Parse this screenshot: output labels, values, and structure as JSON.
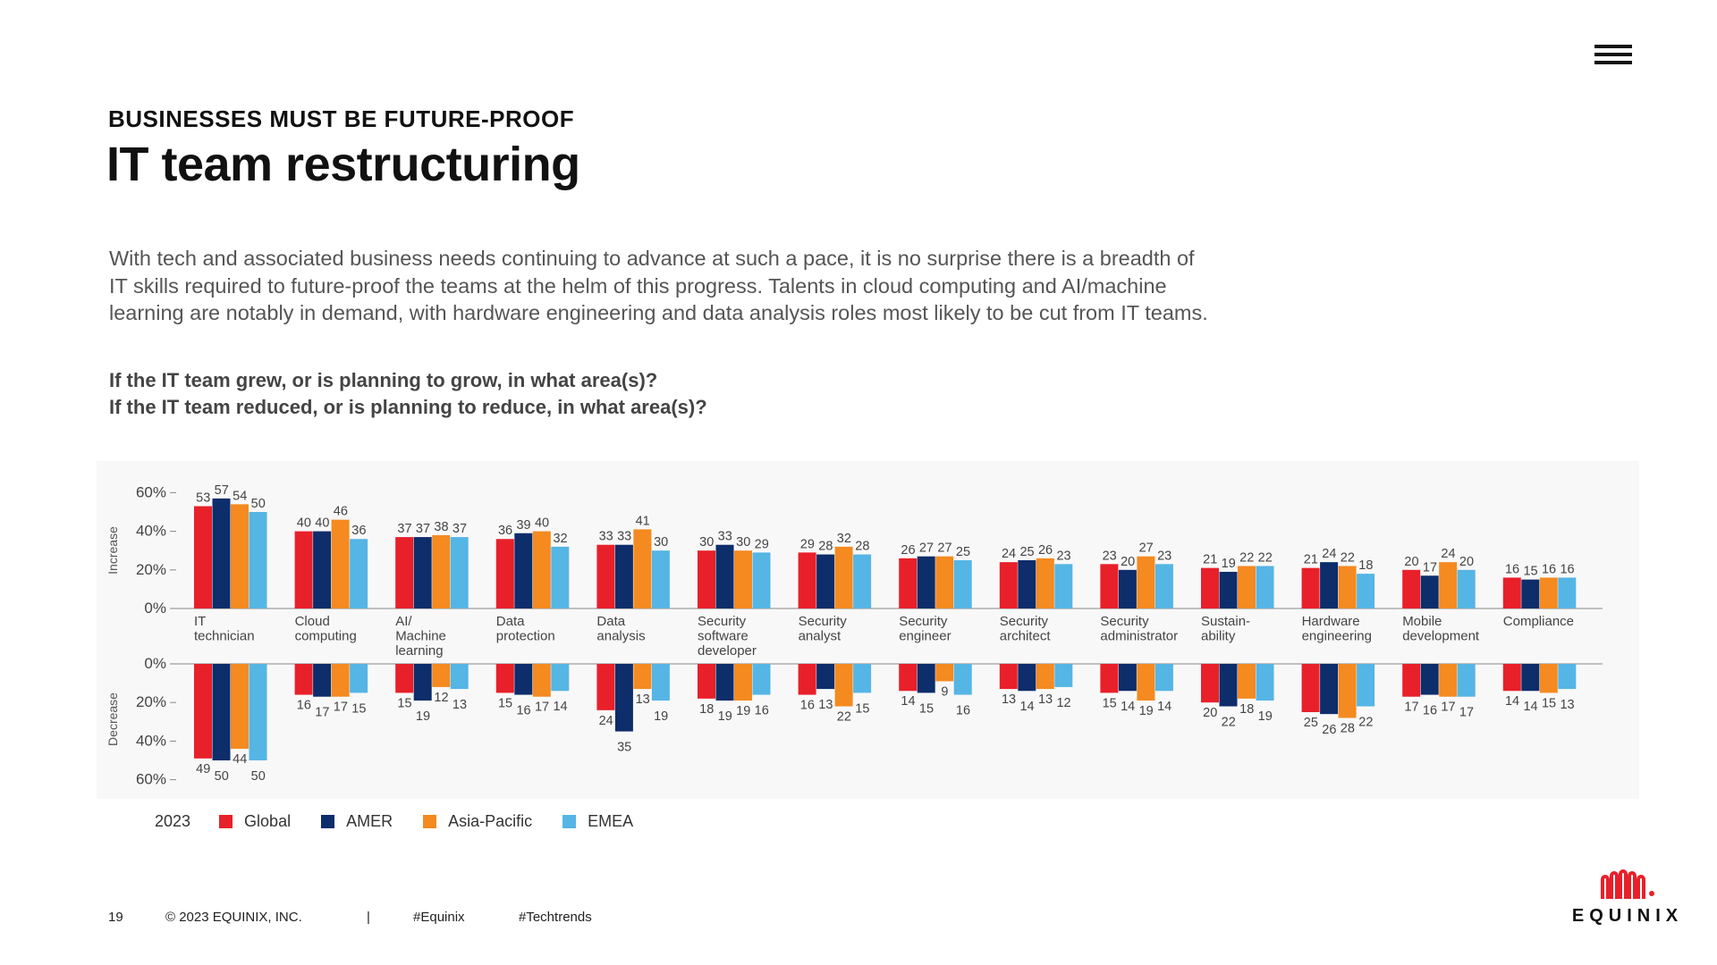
{
  "header": {
    "eyebrow": "BUSINESSES MUST BE FUTURE-PROOF",
    "title": "IT team restructuring",
    "intro": "With tech and associated business needs continuing to advance at such a pace, it is no surprise there is a breadth of IT skills required to future-proof the teams at the helm of this progress. Talents in cloud computing and AI/machine learning are notably in demand, with hardware engineering and data analysis roles most likely to be cut from IT teams.",
    "question_grow": "If the IT team grew, or is planning to grow, in what area(s)?",
    "question_reduce": "If the IT team reduced, or is planning to reduce, in what area(s)?"
  },
  "colors": {
    "Global": "#e8202a",
    "AMER": "#0d2d6b",
    "Asia-Pacific": "#f48a20",
    "EMEA": "#55b5e5"
  },
  "chart_data": {
    "type": "bar",
    "categories": [
      [
        "IT",
        "technician"
      ],
      [
        "Cloud",
        "computing"
      ],
      [
        "AI/",
        "Machine",
        "learning"
      ],
      [
        "Data",
        "protection"
      ],
      [
        "Data",
        "analysis"
      ],
      [
        "Security",
        "software",
        "developer"
      ],
      [
        "Security",
        "analyst"
      ],
      [
        "Security",
        "engineer"
      ],
      [
        "Security",
        "architect"
      ],
      [
        "Security",
        "administrator"
      ],
      [
        "Sustain-",
        "ability"
      ],
      [
        "Hardware",
        "engineering"
      ],
      [
        "Mobile",
        "development"
      ],
      [
        "Compliance"
      ]
    ],
    "series": [
      {
        "name": "Global",
        "increase": [
          53,
          40,
          37,
          36,
          33,
          30,
          29,
          26,
          24,
          23,
          21,
          21,
          20,
          16
        ],
        "decrease": [
          49,
          16,
          15,
          15,
          24,
          18,
          16,
          14,
          13,
          15,
          20,
          25,
          17,
          14
        ]
      },
      {
        "name": "AMER",
        "increase": [
          57,
          40,
          37,
          39,
          33,
          33,
          28,
          27,
          25,
          20,
          19,
          24,
          17,
          15
        ],
        "decrease": [
          50,
          17,
          19,
          16,
          35,
          19,
          13,
          15,
          14,
          14,
          22,
          26,
          16,
          14
        ]
      },
      {
        "name": "Asia-Pacific",
        "increase": [
          54,
          46,
          38,
          40,
          41,
          30,
          32,
          27,
          26,
          27,
          22,
          22,
          24,
          16
        ],
        "decrease": [
          44,
          17,
          12,
          17,
          13,
          19,
          22,
          9,
          13,
          19,
          18,
          28,
          17,
          15
        ]
      },
      {
        "name": "EMEA",
        "increase": [
          50,
          36,
          37,
          32,
          30,
          29,
          28,
          25,
          23,
          23,
          22,
          18,
          20,
          16
        ],
        "decrease": [
          50,
          15,
          13,
          14,
          19,
          16,
          15,
          16,
          12,
          14,
          19,
          22,
          17,
          13
        ]
      }
    ],
    "increase_label": "Increase",
    "decrease_label": "Decrease",
    "increase_ticks": [
      "60%",
      "40%",
      "20%",
      "0%"
    ],
    "decrease_ticks": [
      "0%",
      "20%",
      "40%",
      "60%"
    ],
    "ylim": [
      0,
      60
    ],
    "legend_year": "2023",
    "legend_placement": "bottom-left"
  },
  "footer": {
    "page": "19",
    "copyright": "© 2023 EQUINIX, INC.",
    "separator": "|",
    "hashtag_1": "#Equinix",
    "hashtag_2": "#Techtrends"
  },
  "logo": {
    "text": "EQUINIX"
  }
}
